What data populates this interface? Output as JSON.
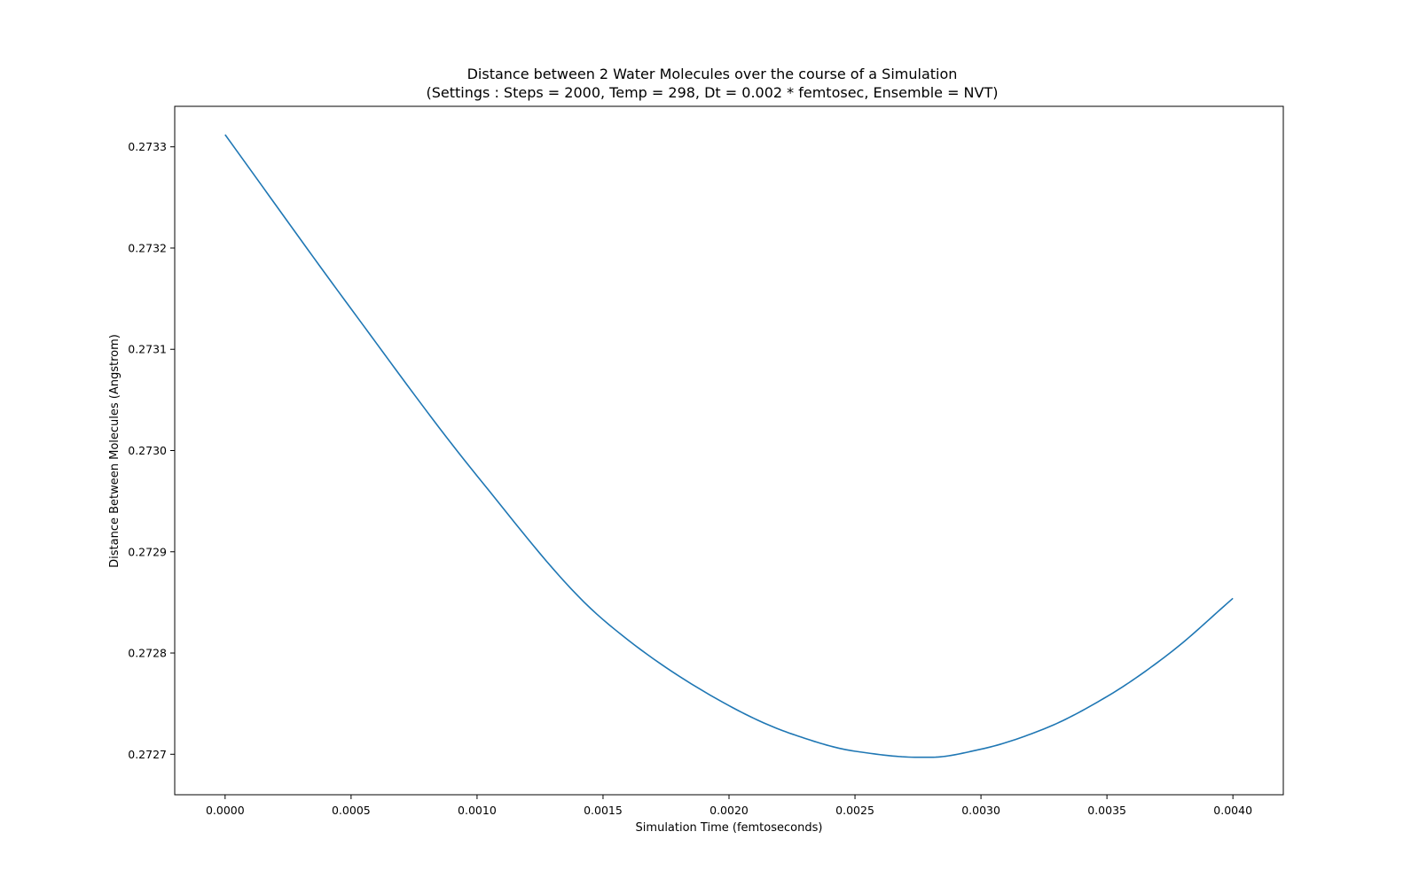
{
  "chart_data": {
    "type": "line",
    "title": "Distance between 2 Water Molecules over the course of a Simulation",
    "subtitle": "(Settings : Steps = 2000, Temp = 298, Dt = 0.002 * femtosec, Ensemble = NVT)",
    "xlabel": "Simulation Time (femtoseconds)",
    "ylabel": "Distance Between Molecules (Angstrom)",
    "xlim": [
      -0.0002,
      0.0042
    ],
    "ylim": [
      0.27266,
      0.27334
    ],
    "xticks": [
      0.0,
      0.0005,
      0.001,
      0.0015,
      0.002,
      0.0025,
      0.003,
      0.0035,
      0.004
    ],
    "xtick_labels": [
      "0.0000",
      "0.0005",
      "0.0010",
      "0.0015",
      "0.0020",
      "0.0025",
      "0.0030",
      "0.0035",
      "0.0040"
    ],
    "yticks": [
      0.2727,
      0.2728,
      0.2729,
      0.273,
      0.2731,
      0.2732,
      0.2733
    ],
    "ytick_labels": [
      "0.2727",
      "0.2728",
      "0.2729",
      "0.2730",
      "0.2731",
      "0.2732",
      "0.2733"
    ],
    "grid": false,
    "line_color": "#1f77b4",
    "series": [
      {
        "x": [
          0.0,
          0.0005,
          0.001,
          0.0015,
          0.002,
          0.00225,
          0.0025,
          0.00275,
          0.0028,
          0.003,
          0.00325,
          0.0035,
          0.00375,
          0.004
        ],
        "y": [
          0.273312,
          0.27314,
          0.272975,
          0.272833,
          0.272748,
          0.27272,
          0.272703,
          0.272697,
          0.272697,
          0.272705,
          0.272725,
          0.272757,
          0.2728,
          0.272854
        ]
      }
    ]
  }
}
